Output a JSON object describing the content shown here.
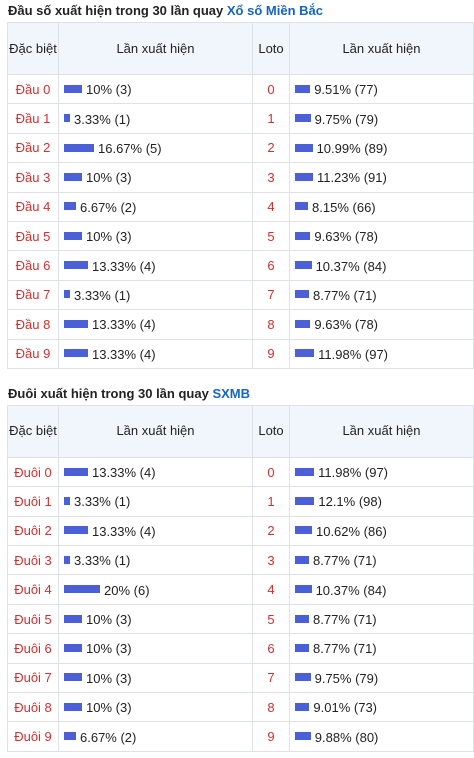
{
  "section1": {
    "title_prefix": "Đầu số xuất hiện trong 30 lần quay",
    "title_brand": "Xổ số Miền Bắc",
    "headers": {
      "special": "Đặc biệt",
      "occurrence": "Lần xuất hiện",
      "loto": "Loto",
      "loto_occurrence": "Lần xuất hiện"
    },
    "rows": [
      {
        "label": "Đầu 0",
        "percent": 10,
        "text": "10% (3)",
        "loto": "0",
        "loto_percent": 9.51,
        "loto_text": "9.51% (77)"
      },
      {
        "label": "Đầu 1",
        "percent": 3.33,
        "text": "3.33% (1)",
        "loto": "1",
        "loto_percent": 9.75,
        "loto_text": "9.75% (79)"
      },
      {
        "label": "Đầu 2",
        "percent": 16.67,
        "text": "16.67% (5)",
        "loto": "2",
        "loto_percent": 10.99,
        "loto_text": "10.99% (89)"
      },
      {
        "label": "Đầu 3",
        "percent": 10,
        "text": "10% (3)",
        "loto": "3",
        "loto_percent": 11.23,
        "loto_text": "11.23% (91)"
      },
      {
        "label": "Đầu 4",
        "percent": 6.67,
        "text": "6.67% (2)",
        "loto": "4",
        "loto_percent": 8.15,
        "loto_text": "8.15% (66)"
      },
      {
        "label": "Đầu 5",
        "percent": 10,
        "text": "10% (3)",
        "loto": "5",
        "loto_percent": 9.63,
        "loto_text": "9.63% (78)"
      },
      {
        "label": "Đầu 6",
        "percent": 13.33,
        "text": "13.33% (4)",
        "loto": "6",
        "loto_percent": 10.37,
        "loto_text": "10.37% (84)"
      },
      {
        "label": "Đầu 7",
        "percent": 3.33,
        "text": "3.33% (1)",
        "loto": "7",
        "loto_percent": 8.77,
        "loto_text": "8.77% (71)"
      },
      {
        "label": "Đầu 8",
        "percent": 13.33,
        "text": "13.33% (4)",
        "loto": "8",
        "loto_percent": 9.63,
        "loto_text": "9.63% (78)"
      },
      {
        "label": "Đầu 9",
        "percent": 13.33,
        "text": "13.33% (4)",
        "loto": "9",
        "loto_percent": 11.98,
        "loto_text": "11.98% (97)"
      }
    ]
  },
  "section2": {
    "title_prefix": "Đuôi xuất hiện trong 30 lần quay",
    "title_brand": "SXMB",
    "headers": {
      "special": "Đặc biệt",
      "occurrence": "Lần xuất hiện",
      "loto": "Loto",
      "loto_occurrence": "Lần xuất hiện"
    },
    "rows": [
      {
        "label": "Đuôi 0",
        "percent": 13.33,
        "text": "13.33% (4)",
        "loto": "0",
        "loto_percent": 11.98,
        "loto_text": "11.98% (97)"
      },
      {
        "label": "Đuôi 1",
        "percent": 3.33,
        "text": "3.33% (1)",
        "loto": "1",
        "loto_percent": 12.1,
        "loto_text": "12.1% (98)"
      },
      {
        "label": "Đuôi 2",
        "percent": 13.33,
        "text": "13.33% (4)",
        "loto": "2",
        "loto_percent": 10.62,
        "loto_text": "10.62% (86)"
      },
      {
        "label": "Đuôi 3",
        "percent": 3.33,
        "text": "3.33% (1)",
        "loto": "3",
        "loto_percent": 8.77,
        "loto_text": "8.77% (71)"
      },
      {
        "label": "Đuôi 4",
        "percent": 20,
        "text": "20% (6)",
        "loto": "4",
        "loto_percent": 10.37,
        "loto_text": "10.37% (84)"
      },
      {
        "label": "Đuôi 5",
        "percent": 10,
        "text": "10% (3)",
        "loto": "5",
        "loto_percent": 8.77,
        "loto_text": "8.77% (71)"
      },
      {
        "label": "Đuôi 6",
        "percent": 10,
        "text": "10% (3)",
        "loto": "6",
        "loto_percent": 8.77,
        "loto_text": "8.77% (71)"
      },
      {
        "label": "Đuôi 7",
        "percent": 10,
        "text": "10% (3)",
        "loto": "7",
        "loto_percent": 9.75,
        "loto_text": "9.75% (79)"
      },
      {
        "label": "Đuôi 8",
        "percent": 10,
        "text": "10% (3)",
        "loto": "8",
        "loto_percent": 9.01,
        "loto_text": "9.01% (73)"
      },
      {
        "label": "Đuôi 9",
        "percent": 6.67,
        "text": "6.67% (2)",
        "loto": "9",
        "loto_percent": 9.88,
        "loto_text": "9.88% (80)"
      }
    ]
  },
  "colors": {
    "bar": "#4b5fd6",
    "label_red": "#d32f2f",
    "brand_blue": "#1565c0",
    "header_bg": "#f1f6fc"
  }
}
